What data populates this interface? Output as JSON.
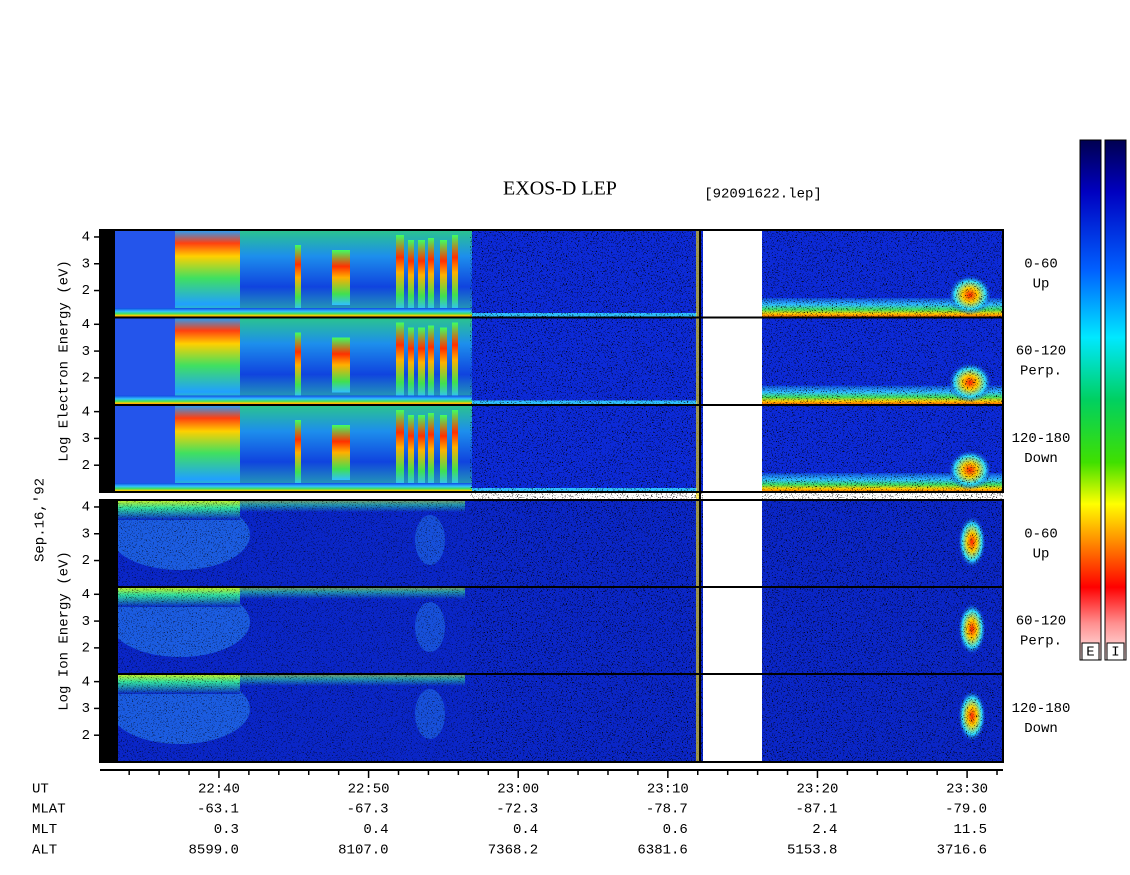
{
  "chart_data": {
    "type": "spectrogram",
    "title": "EXOS-D LEP",
    "file": "[92091622.lep]",
    "date": "Sep.16,'92",
    "blocks": [
      {
        "name": "Log Electron Energy (eV)",
        "ylim": [
          1,
          4.26
        ],
        "panels": [
          {
            "pitch": "0-60",
            "direction": "Up",
            "yticks": [
              2,
              3,
              4
            ]
          },
          {
            "pitch": "60-120",
            "direction": "Perp.",
            "yticks": [
              2,
              3,
              4
            ]
          },
          {
            "pitch": "120-180",
            "direction": "Down",
            "yticks": [
              2,
              3,
              4
            ]
          }
        ]
      },
      {
        "name": "Log Ion Energy (eV)",
        "ylim": [
          1,
          4.26
        ],
        "panels": [
          {
            "pitch": "0-60",
            "direction": "Up",
            "yticks": [
              2,
              3,
              4
            ]
          },
          {
            "pitch": "60-120",
            "direction": "Perp.",
            "yticks": [
              2,
              3,
              4
            ]
          },
          {
            "pitch": "120-180",
            "direction": "Down",
            "yticks": [
              2,
              3,
              4
            ]
          }
        ]
      }
    ],
    "x_label": "UT",
    "xlim": [
      32.05,
      92.4
    ],
    "xticks": [
      {
        "value": 40,
        "label": "22:40"
      },
      {
        "value": 50,
        "label": "22:50"
      },
      {
        "value": 60,
        "label": "23:00"
      },
      {
        "value": 70,
        "label": "23:10"
      },
      {
        "value": 80,
        "label": "23:20"
      },
      {
        "value": 90,
        "label": "23:30"
      }
    ],
    "xminorticks": [
      34,
      36,
      38,
      42,
      44,
      46,
      48,
      52,
      54,
      56,
      58,
      62,
      64,
      66,
      68,
      72,
      74,
      76,
      78,
      82,
      84,
      86,
      88,
      92
    ],
    "ephemeris": [
      {
        "name": "MLAT",
        "values": [
          "-63.1",
          "-67.3",
          "-72.3",
          "-78.7",
          "-87.1",
          "-79.0"
        ]
      },
      {
        "name": "MLT",
        "values": [
          "0.3",
          "0.4",
          "0.4",
          "0.6",
          "2.4",
          "11.5"
        ]
      },
      {
        "name": "ALT",
        "values": [
          "8599.0",
          "8107.0",
          "7368.2",
          "6381.6",
          "5153.8",
          "3716.6"
        ]
      }
    ],
    "colorbar_labels": [
      "E",
      "I"
    ]
  }
}
